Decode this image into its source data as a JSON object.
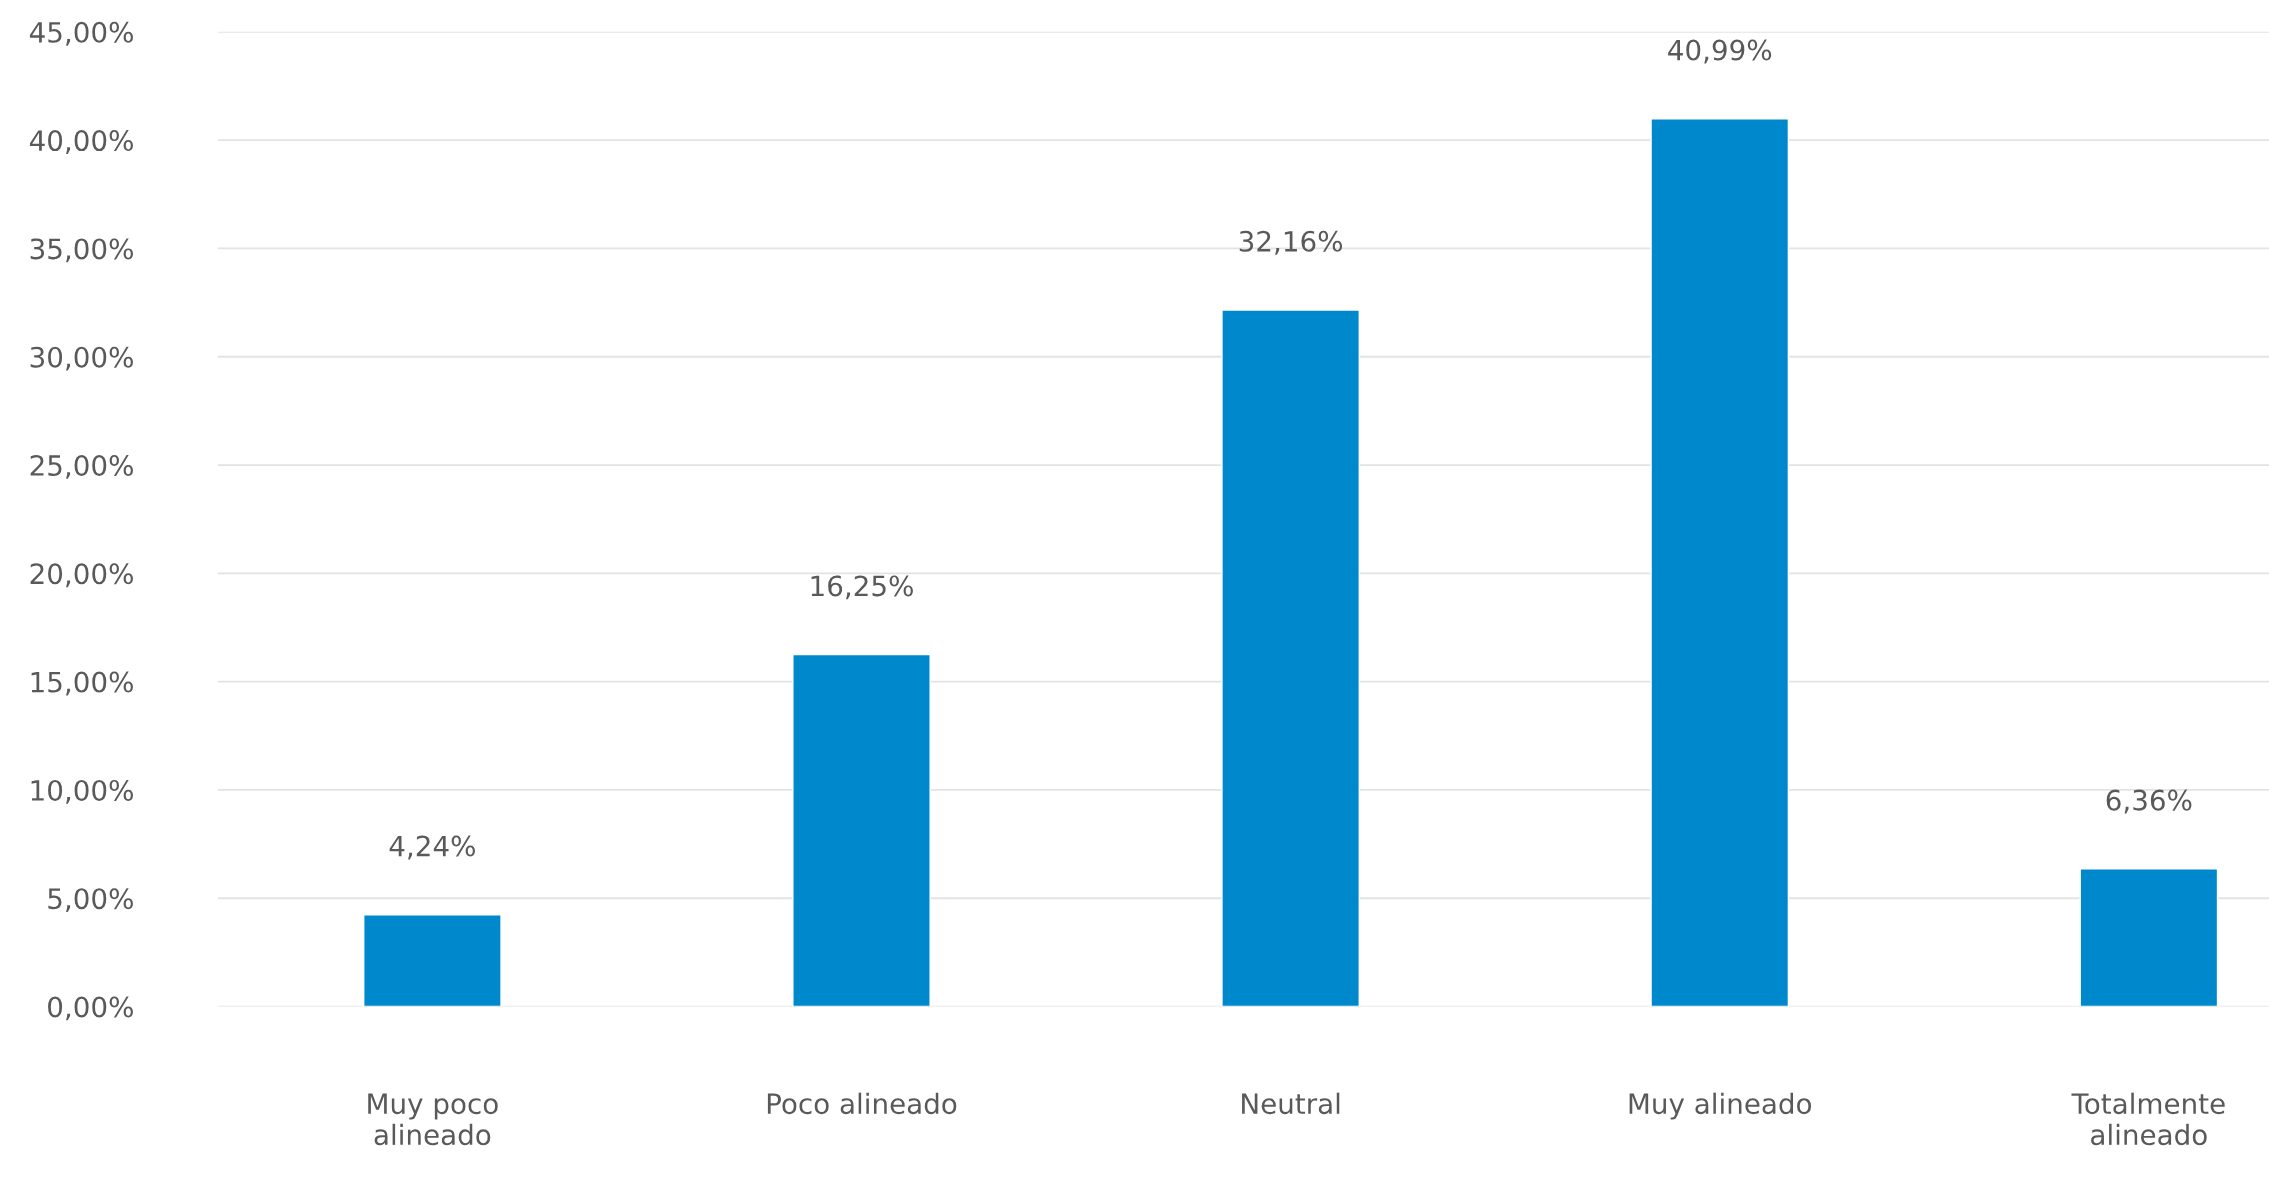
{
  "chart_data": {
    "type": "bar",
    "categories": [
      "Muy poco alineado",
      "Poco alineado",
      "Neutral",
      "Muy alineado",
      "Totalmente alineado"
    ],
    "values": [
      4.24,
      16.25,
      32.16,
      40.99,
      6.36
    ],
    "value_labels": [
      "4,24%",
      "16,25%",
      "32,16%",
      "40,99%",
      "6,36%"
    ],
    "color": "#0088cc",
    "ylim": [
      0,
      45
    ],
    "yticks": [
      {
        "value": 0,
        "label": "0,00%"
      },
      {
        "value": 5,
        "label": "5,00%"
      },
      {
        "value": 10,
        "label": "10,00%"
      },
      {
        "value": 15,
        "label": "15,00%"
      },
      {
        "value": 20,
        "label": "20,00%"
      },
      {
        "value": 25,
        "label": "25,00%"
      },
      {
        "value": 30,
        "label": "30,00%"
      },
      {
        "value": 35,
        "label": "35,00%"
      },
      {
        "value": 40,
        "label": "40,00%"
      },
      {
        "value": 45,
        "label": "45,00%"
      }
    ],
    "grid": "y"
  }
}
